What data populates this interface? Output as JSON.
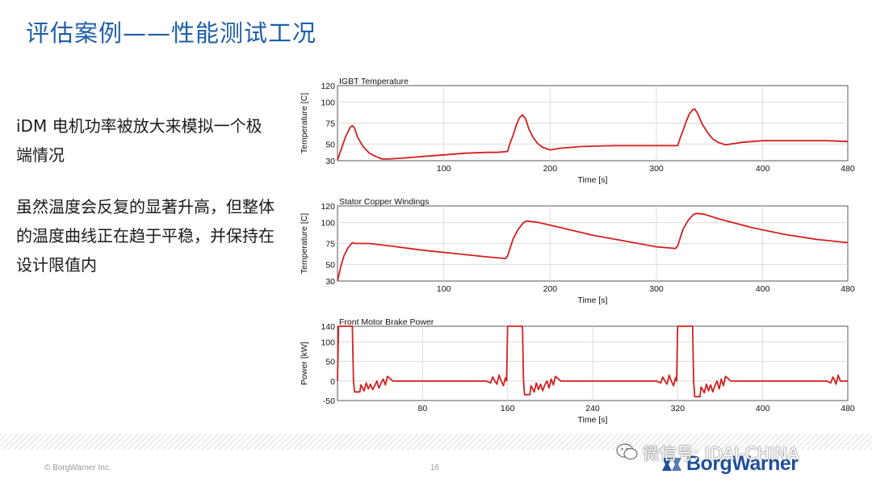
{
  "slide": {
    "title": "评估案例——性能测试工况",
    "paragraph1": "iDM 电机功率被放大来模拟一个极端情况",
    "paragraph2": "虽然温度会反复的显著升高，但整体的温度曲线正在趋于平稳，并保持在设计限值内"
  },
  "footer": {
    "copyright": "© BorgWarner  Inc.",
    "page_number": "16",
    "logo_text": "BorgWarner",
    "watermark": "微信号: IDAI-CHINA"
  },
  "colors": {
    "title": "#1f5fa8",
    "series": "#d42020",
    "logo": "#1f4f9a"
  },
  "chart_data": [
    {
      "type": "line",
      "title": "IGBT Temperature",
      "xlabel": "Time [s]",
      "ylabel": "Temperature [C]",
      "xlim": [
        0,
        480
      ],
      "ylim": [
        30,
        120
      ],
      "xticks": [
        100,
        200,
        300,
        400,
        480
      ],
      "yticks": [
        30,
        50,
        75,
        100,
        120
      ],
      "grid": true,
      "series": [
        {
          "x": [
            0,
            3,
            8,
            12,
            14,
            16,
            19,
            24,
            30,
            36,
            42,
            48,
            60,
            80,
            100,
            120,
            140,
            150,
            160,
            162,
            165,
            168,
            171,
            174,
            177,
            180,
            184,
            188,
            193,
            200,
            210,
            230,
            260,
            290,
            320,
            322,
            325,
            328,
            331,
            334,
            336,
            339,
            343,
            348,
            353,
            358,
            365,
            380,
            400,
            430,
            460,
            480
          ],
          "y": [
            31,
            42,
            60,
            70,
            72,
            69,
            58,
            47,
            39,
            35,
            32,
            32,
            33,
            35,
            37,
            39,
            40,
            40,
            41,
            50,
            60,
            72,
            81,
            85,
            80,
            68,
            58,
            51,
            46,
            43,
            45,
            47,
            48,
            48,
            48,
            56,
            66,
            77,
            86,
            91,
            92,
            86,
            74,
            64,
            56,
            52,
            49,
            52,
            54,
            54,
            54,
            53
          ]
        }
      ]
    },
    {
      "type": "line",
      "title": "Stator Copper Windings",
      "xlabel": "Time [s]",
      "ylabel": "Temperature [C]",
      "xlim": [
        0,
        480
      ],
      "ylim": [
        30,
        120
      ],
      "xticks": [
        100,
        200,
        300,
        400,
        480
      ],
      "yticks": [
        30,
        50,
        75,
        100,
        120
      ],
      "grid": true,
      "series": [
        {
          "x": [
            0,
            3,
            6,
            10,
            14,
            16,
            20,
            30,
            50,
            80,
            110,
            140,
            158,
            160,
            165,
            170,
            175,
            178,
            190,
            210,
            240,
            270,
            300,
            318,
            320,
            325,
            330,
            335,
            338,
            345,
            360,
            390,
            420,
            450,
            480
          ],
          "y": [
            30,
            47,
            60,
            70,
            76,
            75,
            75,
            75,
            72,
            67,
            63,
            59,
            57,
            60,
            80,
            92,
            100,
            102,
            100,
            94,
            85,
            78,
            71,
            69,
            72,
            92,
            103,
            110,
            111,
            110,
            104,
            94,
            86,
            80,
            76
          ]
        }
      ]
    },
    {
      "type": "line",
      "title": "Front Motor Brake Power",
      "xlabel": "Time [s]",
      "ylabel": "Power [kW]",
      "xlim": [
        0,
        480
      ],
      "ylim": [
        -50,
        140
      ],
      "xticks": [
        80,
        160,
        240,
        320,
        400,
        480
      ],
      "yticks": [
        -50,
        0,
        50,
        100,
        140
      ],
      "grid": true,
      "series": [
        {
          "x": [
            0,
            1,
            14,
            15,
            16,
            21,
            22,
            25,
            27,
            29,
            31,
            33,
            35,
            37,
            39,
            41,
            43,
            45,
            47,
            52,
            100,
            140,
            144,
            146,
            148,
            150,
            152,
            154,
            156,
            158,
            159,
            160,
            161,
            174,
            175,
            176,
            181,
            182,
            185,
            187,
            189,
            191,
            193,
            195,
            197,
            199,
            201,
            203,
            205,
            210,
            260,
            300,
            304,
            306,
            308,
            310,
            312,
            314,
            316,
            318,
            319,
            320,
            321,
            334,
            335,
            336,
            341,
            342,
            345,
            347,
            349,
            351,
            353,
            355,
            357,
            359,
            361,
            363,
            365,
            370,
            420,
            460,
            464,
            466,
            468,
            469,
            471,
            473,
            480
          ],
          "y": [
            0,
            140,
            140,
            0,
            -28,
            -28,
            -10,
            -25,
            -5,
            -20,
            -8,
            -22,
            -12,
            0,
            -18,
            -5,
            5,
            -10,
            12,
            0,
            0,
            0,
            -5,
            10,
            0,
            -8,
            15,
            0,
            -12,
            8,
            0,
            140,
            140,
            140,
            0,
            -35,
            -35,
            -12,
            -28,
            -5,
            -22,
            -8,
            -25,
            -10,
            0,
            -18,
            5,
            -10,
            12,
            0,
            0,
            0,
            -5,
            10,
            0,
            -8,
            15,
            0,
            -12,
            8,
            0,
            140,
            140,
            140,
            0,
            -40,
            -40,
            -15,
            -30,
            -8,
            -25,
            -10,
            -28,
            -12,
            0,
            -20,
            5,
            -12,
            12,
            0,
            0,
            0,
            -5,
            10,
            0,
            -8,
            15,
            0,
            0
          ]
        }
      ]
    }
  ]
}
